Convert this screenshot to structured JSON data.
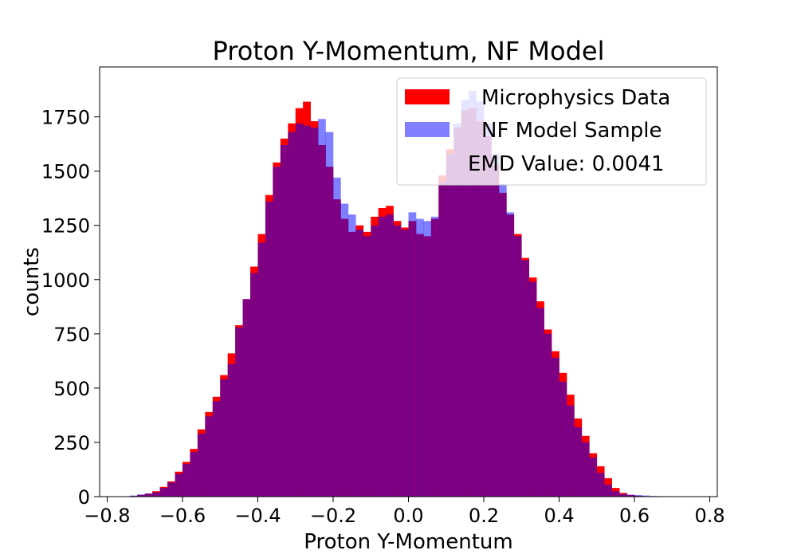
{
  "chart_data": {
    "type": "bar",
    "title": "Proton Y-Momentum, NF Model",
    "xlabel": "Proton Y-Momentum",
    "ylabel": "counts",
    "xlim": [
      -0.82,
      0.82
    ],
    "ylim": [
      0,
      1980
    ],
    "xticks": [
      -0.8,
      -0.6,
      -0.4,
      -0.2,
      0.0,
      0.2,
      0.4,
      0.6,
      0.8
    ],
    "xtick_labels": [
      "−0.8",
      "−0.6",
      "−0.4",
      "−0.2",
      "0.0",
      "0.2",
      "0.4",
      "0.6",
      "0.8"
    ],
    "yticks": [
      0,
      250,
      500,
      750,
      1000,
      1250,
      1500,
      1750
    ],
    "ytick_labels": [
      "0",
      "250",
      "500",
      "750",
      "1000",
      "1250",
      "1500",
      "1750"
    ],
    "grid": false,
    "legend_position": "top-right",
    "bin_width": 0.02,
    "series": [
      {
        "name": "Microphysics Data",
        "color": "#ff0000",
        "alpha": 1.0,
        "bin_lefts": [
          -0.74,
          -0.72,
          -0.7,
          -0.68,
          -0.66,
          -0.64,
          -0.62,
          -0.6,
          -0.58,
          -0.56,
          -0.54,
          -0.52,
          -0.5,
          -0.48,
          -0.46,
          -0.44,
          -0.42,
          -0.4,
          -0.38,
          -0.36,
          -0.34,
          -0.32,
          -0.3,
          -0.28,
          -0.26,
          -0.24,
          -0.22,
          -0.2,
          -0.18,
          -0.16,
          -0.14,
          -0.12,
          -0.1,
          -0.08,
          -0.06,
          -0.04,
          -0.02,
          0.0,
          0.02,
          0.04,
          0.06,
          0.08,
          0.1,
          0.12,
          0.14,
          0.16,
          0.18,
          0.2,
          0.22,
          0.24,
          0.26,
          0.28,
          0.3,
          0.32,
          0.34,
          0.36,
          0.38,
          0.4,
          0.42,
          0.44,
          0.46,
          0.48,
          0.5,
          0.52,
          0.54,
          0.56,
          0.58,
          0.6,
          0.62,
          0.64,
          0.66,
          0.68,
          0.7,
          0.72
        ],
        "values": [
          3,
          8,
          14,
          25,
          45,
          70,
          115,
          160,
          220,
          310,
          390,
          460,
          560,
          660,
          790,
          910,
          1060,
          1210,
          1390,
          1540,
          1650,
          1720,
          1790,
          1820,
          1730,
          1620,
          1520,
          1370,
          1280,
          1220,
          1250,
          1220,
          1290,
          1330,
          1340,
          1270,
          1240,
          1270,
          1210,
          1200,
          1280,
          1480,
          1600,
          1700,
          1780,
          1790,
          1730,
          1660,
          1530,
          1400,
          1300,
          1210,
          1100,
          1010,
          900,
          770,
          670,
          570,
          470,
          360,
          280,
          200,
          140,
          85,
          40,
          17,
          8,
          4,
          2,
          1,
          0,
          0,
          0,
          0
        ]
      },
      {
        "name": "NF Model Sample",
        "color": "#0000ff",
        "alpha": 0.5,
        "bin_lefts": [
          -0.74,
          -0.72,
          -0.7,
          -0.68,
          -0.66,
          -0.64,
          -0.62,
          -0.6,
          -0.58,
          -0.56,
          -0.54,
          -0.52,
          -0.5,
          -0.48,
          -0.46,
          -0.44,
          -0.42,
          -0.4,
          -0.38,
          -0.36,
          -0.34,
          -0.32,
          -0.3,
          -0.28,
          -0.26,
          -0.24,
          -0.22,
          -0.2,
          -0.18,
          -0.16,
          -0.14,
          -0.12,
          -0.1,
          -0.08,
          -0.06,
          -0.04,
          -0.02,
          0.0,
          0.02,
          0.04,
          0.06,
          0.08,
          0.1,
          0.12,
          0.14,
          0.16,
          0.18,
          0.2,
          0.22,
          0.24,
          0.26,
          0.28,
          0.3,
          0.32,
          0.34,
          0.36,
          0.38,
          0.4,
          0.42,
          0.44,
          0.46,
          0.48,
          0.5,
          0.52,
          0.54,
          0.56,
          0.58,
          0.6,
          0.62,
          0.64,
          0.66,
          0.68,
          0.7,
          0.72
        ],
        "values": [
          5,
          10,
          14,
          20,
          40,
          65,
          105,
          150,
          205,
          290,
          370,
          440,
          540,
          610,
          780,
          910,
          1030,
          1170,
          1360,
          1520,
          1620,
          1680,
          1720,
          1710,
          1700,
          1740,
          1680,
          1470,
          1350,
          1300,
          1230,
          1200,
          1250,
          1290,
          1300,
          1250,
          1230,
          1310,
          1280,
          1270,
          1290,
          1450,
          1580,
          1720,
          1830,
          1870,
          1820,
          1720,
          1580,
          1440,
          1310,
          1200,
          1090,
          990,
          870,
          750,
          640,
          530,
          420,
          320,
          250,
          180,
          110,
          55,
          25,
          12,
          9,
          7,
          5,
          3,
          2,
          1,
          0,
          0
        ]
      }
    ],
    "annotations": [
      "EMD Value: 0.0041"
    ]
  }
}
